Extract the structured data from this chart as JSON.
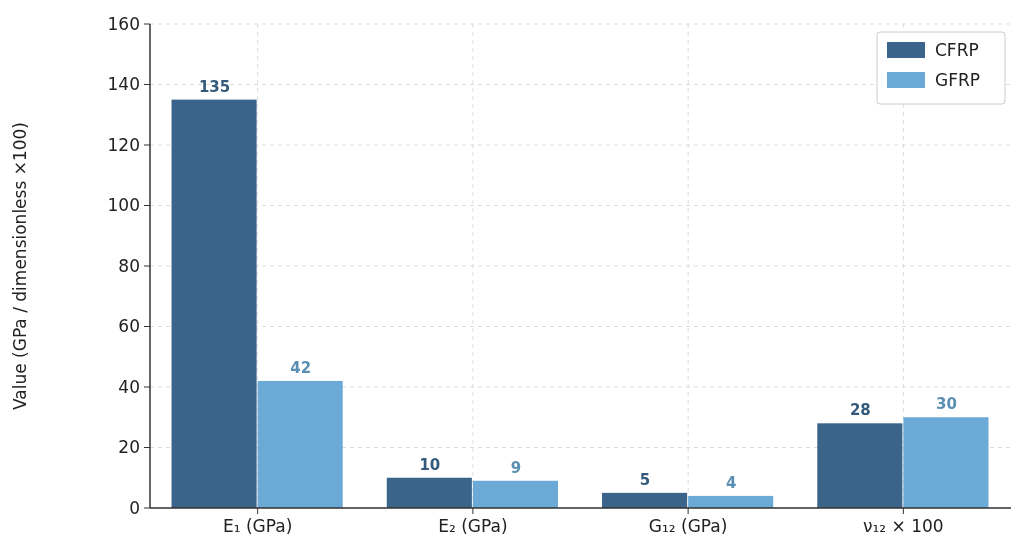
{
  "chart_data": {
    "type": "bar",
    "ylabel": "Value (GPa / dimensionless ×100)",
    "categories": [
      "E₁ (GPa)",
      "E₂ (GPa)",
      "G₁₂ (GPa)",
      "ν₁₂ × 100"
    ],
    "series": [
      {
        "name": "CFRP",
        "color": "#3a6489",
        "values": [
          135,
          10,
          5,
          28
        ]
      },
      {
        "name": "GFRP",
        "color": "#6baad6",
        "values": [
          42,
          9,
          4,
          30
        ]
      }
    ],
    "ylim": [
      0,
      160
    ],
    "yticks": [
      0,
      20,
      40,
      60,
      80,
      100,
      120,
      140,
      160
    ],
    "grid": true,
    "legend": "top right",
    "data_labels": true
  }
}
